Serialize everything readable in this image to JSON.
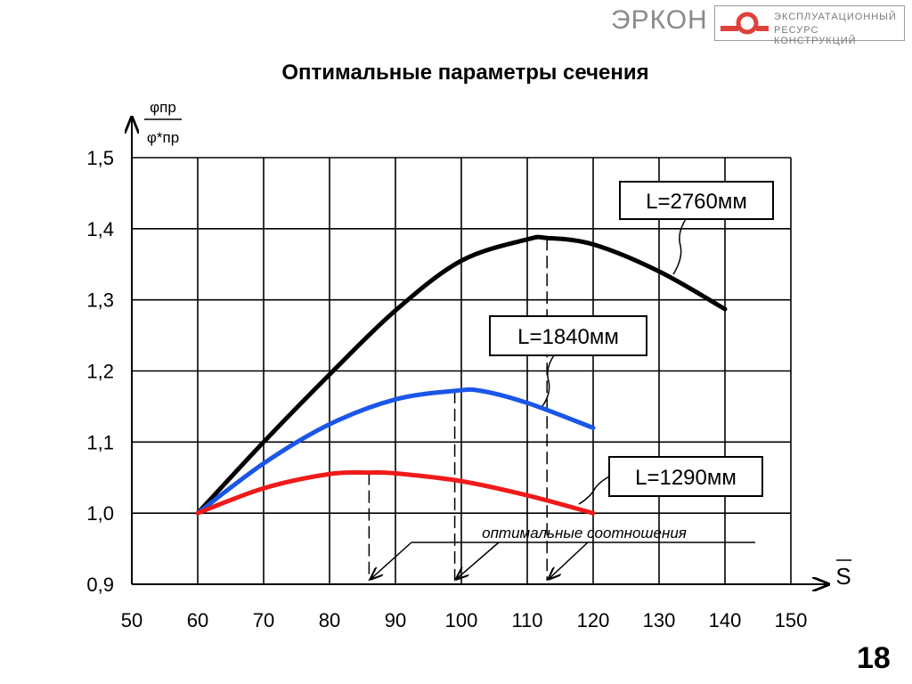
{
  "header": {
    "brand": "ЭРКОН",
    "brand_sub1": "ЭКСПЛУАТАЦИОННЫЙ",
    "brand_sub2": "РЕСУРС  КОНСТРУКЦИЙ"
  },
  "title": "Оптимальные параметры сечения",
  "page_number": "18",
  "colors": {
    "l2760": "#000000",
    "l1840": "#1a56e8",
    "l1290": "#f01a1a",
    "brand_red": "#e0403a"
  },
  "chart_data": {
    "type": "line",
    "xlabel": "S",
    "ylabel_num": "φпр",
    "ylabel_den": "φ*пр",
    "xlim": [
      50,
      150
    ],
    "ylim": [
      0.9,
      1.5
    ],
    "x_ticks": [
      "50",
      "60",
      "70",
      "80",
      "90",
      "100",
      "110",
      "120",
      "130",
      "140",
      "150"
    ],
    "y_ticks": [
      "0,9",
      "1,0",
      "1,1",
      "1,2",
      "1,3",
      "1,4",
      "1,5"
    ],
    "grid": true,
    "series": [
      {
        "name": "L=2760мм",
        "color": "#000000",
        "x": [
          60,
          70,
          80,
          90,
          100,
          110,
          113,
          120,
          130,
          140
        ],
        "y": [
          1.0,
          1.1,
          1.195,
          1.285,
          1.355,
          1.385,
          1.387,
          1.378,
          1.34,
          1.287
        ]
      },
      {
        "name": "L=1840мм",
        "color": "#1a56e8",
        "x": [
          60,
          70,
          80,
          90,
          99,
          103,
          110,
          120
        ],
        "y": [
          1.0,
          1.07,
          1.125,
          1.16,
          1.172,
          1.172,
          1.155,
          1.12
        ]
      },
      {
        "name": "L=1290мм",
        "color": "#f01a1a",
        "x": [
          60,
          70,
          80,
          86,
          90,
          100,
          110,
          120
        ],
        "y": [
          1.0,
          1.035,
          1.055,
          1.057,
          1.056,
          1.045,
          1.025,
          1.0
        ]
      }
    ],
    "optimum_x": [
      86,
      99,
      113
    ],
    "annotation": "оптимальные соотношения"
  }
}
